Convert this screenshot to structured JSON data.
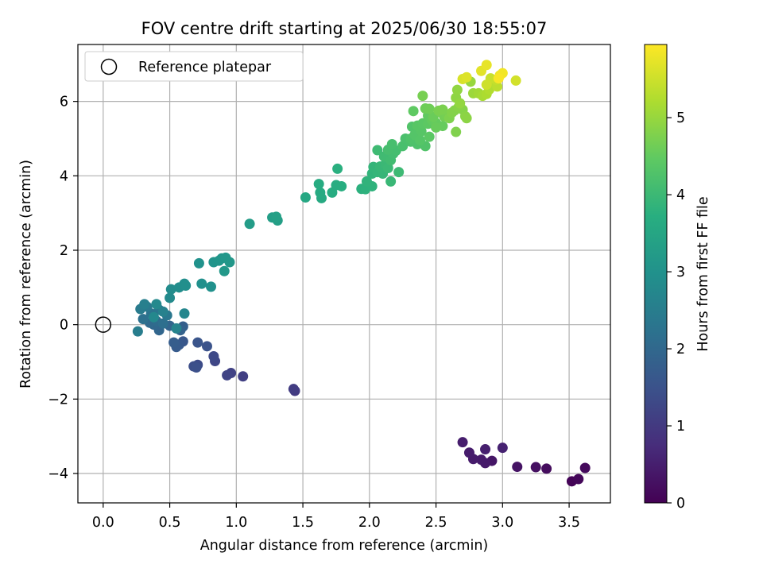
{
  "chart_data": {
    "type": "scatter",
    "title": "FOV centre drift starting at 2025/06/30 18:55:07",
    "xlabel": "Angular distance from reference (arcmin)",
    "ylabel": "Rotation from reference (arcmin)",
    "xlim": [
      -0.19,
      3.81
    ],
    "ylim": [
      -4.79,
      7.53
    ],
    "xticks": [
      0.0,
      0.5,
      1.0,
      1.5,
      2.0,
      2.5,
      3.0,
      3.5
    ],
    "xtick_labels": [
      "0.0",
      "0.5",
      "1.0",
      "1.5",
      "2.0",
      "2.5",
      "3.0",
      "3.5"
    ],
    "yticks": [
      -4,
      -2,
      0,
      2,
      4,
      6
    ],
    "ytick_labels": [
      "−4",
      "−2",
      "0",
      "2",
      "4",
      "6"
    ],
    "grid": true,
    "legend": {
      "placement": "top-left",
      "entries": [
        "Reference platepar"
      ]
    },
    "reference_point": {
      "x": 0.0,
      "y": 0.0
    },
    "colorbar": {
      "label": "Hours from first FF file",
      "colormap": "viridis",
      "range": [
        0,
        5.95
      ],
      "ticks": [
        0,
        1,
        2,
        3,
        4,
        5
      ],
      "tick_labels": [
        "0",
        "1",
        "2",
        "3",
        "4",
        "5"
      ]
    },
    "points": [
      [
        3.52,
        -4.21,
        0.05
      ],
      [
        3.57,
        -4.15,
        0.1
      ],
      [
        3.62,
        -3.85,
        0.15
      ],
      [
        3.33,
        -3.87,
        0.2
      ],
      [
        3.25,
        -3.83,
        0.25
      ],
      [
        3.11,
        -3.82,
        0.3
      ],
      [
        2.92,
        -3.66,
        0.35
      ],
      [
        2.87,
        -3.72,
        0.4
      ],
      [
        2.84,
        -3.63,
        0.42
      ],
      [
        2.78,
        -3.61,
        0.44
      ],
      [
        2.75,
        -3.44,
        0.46
      ],
      [
        2.7,
        -3.16,
        0.48
      ],
      [
        2.87,
        -3.35,
        0.5
      ],
      [
        3.0,
        -3.31,
        0.55
      ],
      [
        1.44,
        -1.78,
        1.0
      ],
      [
        1.43,
        -1.73,
        1.05
      ],
      [
        1.05,
        -1.39,
        1.1
      ],
      [
        0.96,
        -1.3,
        1.15
      ],
      [
        0.93,
        -1.36,
        1.2
      ],
      [
        0.84,
        -0.98,
        1.25
      ],
      [
        0.83,
        -0.85,
        1.3
      ],
      [
        0.71,
        -1.08,
        1.35
      ],
      [
        0.68,
        -1.12,
        1.4
      ],
      [
        0.7,
        -1.15,
        1.45
      ],
      [
        0.78,
        -0.58,
        1.5
      ],
      [
        0.71,
        -0.48,
        1.55
      ],
      [
        0.6,
        -0.45,
        1.6
      ],
      [
        0.57,
        -0.54,
        1.65
      ],
      [
        0.55,
        -0.6,
        1.7
      ],
      [
        0.53,
        -0.48,
        1.75
      ],
      [
        0.6,
        -0.05,
        1.8
      ],
      [
        0.58,
        -0.15,
        1.85
      ],
      [
        0.5,
        -0.03,
        1.9
      ],
      [
        0.42,
        -0.15,
        1.95
      ],
      [
        0.38,
        0.0,
        2.0
      ],
      [
        0.35,
        0.05,
        2.05
      ],
      [
        0.4,
        0.1,
        2.1
      ],
      [
        0.45,
        0.03,
        2.15
      ],
      [
        0.3,
        0.15,
        2.2
      ],
      [
        0.36,
        0.3,
        2.25
      ],
      [
        0.42,
        0.4,
        2.3
      ],
      [
        0.48,
        0.25,
        2.35
      ],
      [
        0.33,
        0.48,
        2.4
      ],
      [
        0.28,
        0.42,
        2.45
      ],
      [
        0.26,
        -0.18,
        2.5
      ],
      [
        0.31,
        0.55,
        2.55
      ],
      [
        0.45,
        0.35,
        2.6
      ],
      [
        0.55,
        -0.1,
        2.65
      ],
      [
        0.61,
        0.3,
        2.7
      ],
      [
        0.38,
        0.2,
        2.75
      ],
      [
        0.4,
        0.55,
        2.78
      ],
      [
        0.5,
        0.72,
        2.8
      ],
      [
        0.51,
        0.95,
        2.85
      ],
      [
        0.57,
        1.0,
        2.88
      ],
      [
        0.61,
        1.1,
        2.9
      ],
      [
        0.62,
        1.05,
        2.92
      ],
      [
        0.74,
        1.1,
        2.95
      ],
      [
        0.81,
        1.02,
        2.98
      ],
      [
        0.72,
        1.65,
        3.0
      ],
      [
        0.83,
        1.68,
        3.05
      ],
      [
        0.87,
        1.72,
        3.08
      ],
      [
        0.89,
        1.78,
        3.1
      ],
      [
        0.92,
        1.8,
        3.12
      ],
      [
        0.95,
        1.68,
        3.14
      ],
      [
        0.91,
        1.44,
        3.16
      ],
      [
        1.1,
        2.71,
        3.25
      ],
      [
        1.27,
        2.88,
        3.3
      ],
      [
        1.31,
        2.8,
        3.32
      ],
      [
        1.3,
        2.9,
        3.35
      ],
      [
        1.52,
        3.42,
        3.55
      ],
      [
        1.64,
        3.4,
        3.6
      ],
      [
        1.63,
        3.55,
        3.62
      ],
      [
        1.62,
        3.78,
        3.64
      ],
      [
        1.72,
        3.55,
        3.66
      ],
      [
        1.75,
        3.75,
        3.68
      ],
      [
        1.79,
        3.72,
        3.7
      ],
      [
        1.76,
        4.19,
        3.75
      ],
      [
        1.94,
        3.65,
        3.78
      ],
      [
        1.97,
        3.64,
        3.8
      ],
      [
        2.02,
        3.72,
        3.82
      ],
      [
        1.98,
        3.85,
        3.84
      ],
      [
        2.02,
        4.06,
        3.86
      ],
      [
        2.03,
        4.24,
        3.88
      ],
      [
        2.06,
        4.1,
        3.9
      ],
      [
        2.1,
        4.06,
        3.92
      ],
      [
        2.08,
        4.25,
        3.94
      ],
      [
        2.16,
        3.85,
        3.96
      ],
      [
        2.12,
        4.31,
        3.98
      ],
      [
        2.14,
        4.21,
        4.0
      ],
      [
        2.22,
        4.1,
        4.02
      ],
      [
        2.06,
        4.69,
        4.04
      ],
      [
        2.11,
        4.52,
        4.06
      ],
      [
        2.16,
        4.42,
        4.08
      ],
      [
        2.18,
        4.6,
        4.1
      ],
      [
        2.2,
        4.68,
        4.12
      ],
      [
        2.14,
        4.7,
        4.14
      ],
      [
        2.17,
        4.85,
        4.16
      ],
      [
        2.25,
        4.8,
        4.18
      ],
      [
        2.27,
        5.0,
        4.2
      ],
      [
        2.31,
        4.92,
        4.22
      ],
      [
        2.36,
        4.85,
        4.24
      ],
      [
        2.31,
        5.0,
        4.26
      ],
      [
        2.42,
        4.8,
        4.28
      ],
      [
        2.32,
        5.32,
        4.3
      ],
      [
        2.34,
        5.1,
        4.32
      ],
      [
        2.38,
        4.96,
        4.34
      ],
      [
        2.39,
        5.2,
        4.36
      ],
      [
        2.36,
        5.35,
        4.38
      ],
      [
        2.4,
        5.41,
        4.4
      ],
      [
        2.45,
        5.05,
        4.42
      ],
      [
        2.44,
        5.4,
        4.44
      ],
      [
        2.33,
        5.74,
        4.46
      ],
      [
        2.44,
        5.62,
        4.48
      ],
      [
        2.47,
        5.5,
        4.5
      ],
      [
        2.5,
        5.42,
        4.52
      ],
      [
        2.55,
        5.34,
        4.54
      ],
      [
        2.5,
        5.3,
        4.56
      ],
      [
        2.48,
        5.58,
        4.58
      ],
      [
        2.42,
        5.81,
        4.6
      ],
      [
        2.45,
        5.8,
        4.62
      ],
      [
        2.53,
        5.72,
        4.64
      ],
      [
        2.56,
        5.6,
        4.66
      ],
      [
        2.58,
        5.65,
        4.68
      ],
      [
        2.4,
        6.15,
        4.7
      ],
      [
        2.52,
        5.75,
        4.72
      ],
      [
        2.55,
        5.78,
        4.74
      ],
      [
        2.6,
        5.55,
        4.76
      ],
      [
        2.65,
        5.18,
        4.78
      ],
      [
        2.62,
        5.7,
        4.8
      ],
      [
        2.64,
        5.76,
        4.82
      ],
      [
        2.7,
        5.78,
        4.84
      ],
      [
        2.67,
        5.85,
        4.86
      ],
      [
        2.72,
        5.6,
        4.88
      ],
      [
        2.73,
        5.55,
        4.9
      ],
      [
        2.65,
        6.1,
        4.92
      ],
      [
        2.66,
        6.31,
        4.94
      ],
      [
        2.68,
        5.95,
        4.96
      ],
      [
        2.76,
        6.53,
        5.0
      ],
      [
        2.78,
        6.22,
        5.05
      ],
      [
        2.82,
        6.22,
        5.1
      ],
      [
        2.85,
        6.15,
        5.15
      ],
      [
        2.88,
        6.2,
        5.2
      ],
      [
        2.9,
        6.32,
        5.25
      ],
      [
        2.93,
        6.55,
        5.3
      ],
      [
        2.96,
        6.4,
        5.35
      ],
      [
        2.95,
        6.58,
        5.4
      ],
      [
        2.91,
        6.62,
        5.45
      ],
      [
        2.88,
        6.45,
        5.5
      ],
      [
        3.1,
        6.56,
        5.55
      ],
      [
        2.7,
        6.6,
        5.6
      ],
      [
        2.73,
        6.65,
        5.65
      ],
      [
        2.84,
        6.82,
        5.7
      ],
      [
        2.88,
        6.98,
        5.75
      ],
      [
        2.98,
        6.7,
        5.8
      ],
      [
        3.0,
        6.76,
        5.85
      ],
      [
        2.97,
        6.62,
        5.9
      ]
    ]
  }
}
